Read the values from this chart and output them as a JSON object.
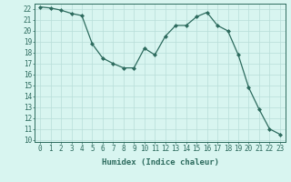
{
  "x": [
    0,
    1,
    2,
    3,
    4,
    5,
    6,
    7,
    8,
    9,
    10,
    11,
    12,
    13,
    14,
    15,
    16,
    17,
    18,
    19,
    20,
    21,
    22,
    23
  ],
  "y": [
    22.2,
    22.1,
    21.9,
    21.6,
    21.4,
    18.8,
    17.5,
    17.0,
    16.6,
    16.6,
    18.4,
    17.8,
    19.5,
    20.5,
    20.5,
    21.3,
    21.7,
    20.5,
    20.0,
    17.8,
    14.8,
    12.8,
    11.0,
    10.5
  ],
  "line_color": "#2d6b5e",
  "marker": "D",
  "marker_size": 2.0,
  "bg_color": "#d8f5f0",
  "grid_color": "#b8ddd8",
  "xlabel": "Humidex (Indice chaleur)",
  "ylim": [
    9.8,
    22.5
  ],
  "xlim": [
    -0.5,
    23.5
  ],
  "yticks": [
    10,
    11,
    12,
    13,
    14,
    15,
    16,
    17,
    18,
    19,
    20,
    21,
    22
  ],
  "xticks": [
    0,
    1,
    2,
    3,
    4,
    5,
    6,
    7,
    8,
    9,
    10,
    11,
    12,
    13,
    14,
    15,
    16,
    17,
    18,
    19,
    20,
    21,
    22,
    23
  ],
  "text_color": "#2d6b5e",
  "label_fontsize": 6.5,
  "tick_fontsize": 5.5
}
